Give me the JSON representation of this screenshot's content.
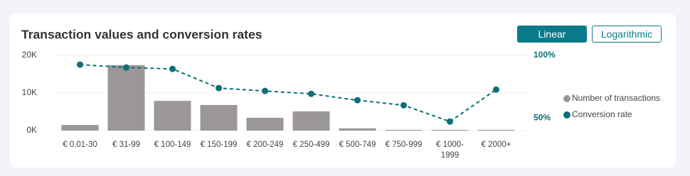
{
  "controls": {
    "scale_buttons": [
      "Linear",
      "Logarithmic"
    ],
    "active": 0
  },
  "chart_data": {
    "type": "bar-line",
    "title": "Transaction values and conversion rates",
    "categories": [
      "€ 0.01-30",
      "€ 31-99",
      "€ 100-149",
      "€ 150-199",
      "€ 200-249",
      "€ 250-499",
      "€ 500-749",
      "€ 750-999",
      "€ 1000-1999",
      "€ 2000+"
    ],
    "series": [
      {
        "name": "Number of transactions",
        "type": "bar",
        "color": "#9b9796",
        "axis": "y",
        "values": [
          1500,
          17400,
          7900,
          6800,
          3400,
          5100,
          600,
          200,
          200,
          200
        ]
      },
      {
        "name": "Conversion rate",
        "type": "line",
        "color": "#0b6f77",
        "axis": "y2",
        "values": [
          92.6,
          90.3,
          89.2,
          73.9,
          71.6,
          69.3,
          64.2,
          60.2,
          47.2,
          72.7
        ]
      }
    ],
    "ylim": [
      0,
      20000
    ],
    "yticks": [
      {
        "value": 0,
        "label": "0K"
      },
      {
        "value": 10000,
        "label": "10K"
      },
      {
        "value": 20000,
        "label": "20K"
      }
    ],
    "y2lim": [
      40,
      100
    ],
    "y2ticks": [
      {
        "value": 50,
        "label": "50%"
      },
      {
        "value": 100,
        "label": "100%"
      }
    ],
    "grid": true,
    "legend": "right"
  }
}
